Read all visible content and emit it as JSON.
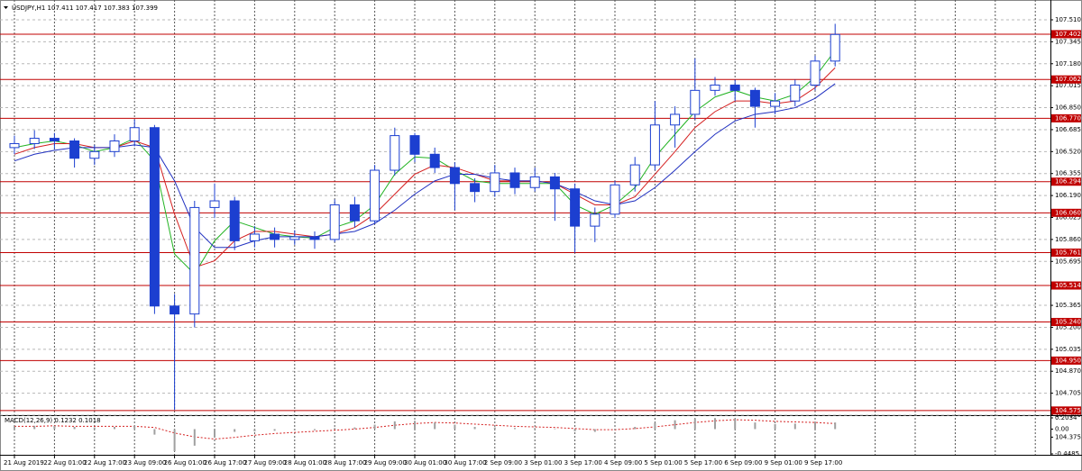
{
  "chart_data": {
    "type": "candlestick",
    "title": "USDJPY,H1  107.411 107.417 107.383 107.399",
    "categories": [
      "21 Aug 2019",
      null,
      "22 Aug 01:00",
      null,
      "22 Aug 17:00",
      null,
      "23 Aug 09:00",
      null,
      "26 Aug 01:00",
      null,
      "26 Aug 17:00",
      null,
      "27 Aug 09:00",
      null,
      "28 Aug 01:00",
      null,
      "28 Aug 17:00",
      null,
      "29 Aug 09:00",
      null,
      "30 Aug 01:00",
      null,
      "30 Aug 17:00",
      null,
      "2 Sep 09:00",
      null,
      "3 Sep 01:00",
      null,
      "3 Sep 17:00",
      null,
      "4 Sep 09:00",
      null,
      "5 Sep 01:00",
      null,
      "5 Sep 17:00",
      null,
      "6 Sep 09:00",
      null,
      "9 Sep 01:00",
      null,
      "9 Sep 17:00",
      null
    ],
    "open": [
      106.55,
      106.58,
      106.62,
      106.6,
      106.47,
      106.52,
      106.6,
      106.7,
      105.36,
      105.3,
      106.1,
      106.15,
      105.85,
      105.9,
      105.86,
      105.88,
      105.86,
      106.12,
      106.0,
      106.38,
      106.64,
      106.5,
      106.4,
      106.28,
      106.22,
      106.36,
      106.25,
      106.33,
      106.24,
      105.96,
      106.05,
      106.27,
      106.42,
      106.72,
      106.8,
      106.98,
      107.02,
      106.98,
      106.86,
      106.9,
      107.02,
      107.2
    ],
    "high": [
      106.64,
      106.68,
      106.66,
      106.62,
      106.57,
      106.65,
      106.76,
      106.72,
      105.45,
      106.15,
      106.28,
      106.18,
      105.96,
      105.95,
      105.93,
      105.92,
      106.16,
      106.18,
      106.42,
      106.7,
      106.66,
      106.55,
      106.44,
      106.32,
      106.42,
      106.4,
      106.4,
      106.36,
      106.28,
      106.1,
      106.3,
      106.48,
      106.9,
      106.86,
      107.22,
      107.08,
      107.06,
      107.0,
      106.96,
      107.06,
      107.24,
      107.48
    ],
    "low": [
      106.5,
      106.54,
      106.54,
      106.4,
      106.42,
      106.48,
      106.56,
      105.3,
      104.58,
      105.2,
      106.02,
      105.78,
      105.8,
      105.8,
      105.82,
      105.79,
      105.84,
      105.95,
      105.98,
      106.34,
      106.44,
      106.36,
      106.08,
      106.14,
      106.18,
      106.2,
      106.22,
      106.0,
      105.76,
      105.84,
      106.02,
      106.22,
      106.38,
      106.55,
      106.76,
      106.94,
      106.9,
      106.7,
      106.8,
      106.86,
      106.98,
      107.16
    ],
    "close": [
      106.58,
      106.62,
      106.6,
      106.47,
      106.52,
      106.6,
      106.7,
      105.36,
      105.3,
      106.1,
      106.15,
      105.85,
      105.9,
      105.86,
      105.88,
      105.86,
      106.12,
      106.0,
      106.38,
      106.64,
      106.5,
      106.4,
      106.28,
      106.22,
      106.36,
      106.25,
      106.33,
      106.24,
      105.96,
      106.05,
      106.27,
      106.42,
      106.72,
      106.8,
      106.98,
      107.02,
      106.98,
      106.86,
      106.9,
      107.02,
      107.2,
      107.4
    ],
    "candle_color": "#1c3fd0",
    "series": [
      {
        "color": "#22b322",
        "values": [
          106.55,
          106.58,
          106.6,
          106.57,
          106.52,
          106.55,
          106.62,
          106.45,
          105.75,
          105.6,
          105.85,
          106.0,
          105.95,
          105.9,
          105.88,
          105.87,
          105.95,
          106.0,
          106.12,
          106.35,
          106.48,
          106.47,
          106.38,
          106.3,
          106.28,
          106.28,
          106.28,
          106.28,
          106.12,
          106.05,
          106.12,
          106.25,
          106.48,
          106.65,
          106.82,
          106.93,
          106.98,
          106.93,
          106.9,
          106.95,
          107.08,
          107.28
        ]
      },
      {
        "color": "#d42020",
        "values": [
          106.5,
          106.55,
          106.58,
          106.58,
          106.55,
          106.55,
          106.6,
          106.55,
          106.05,
          105.65,
          105.7,
          105.85,
          105.92,
          105.92,
          105.9,
          105.88,
          105.9,
          105.95,
          106.05,
          106.2,
          106.35,
          106.42,
          106.4,
          106.35,
          106.3,
          106.3,
          106.3,
          106.28,
          106.2,
          106.12,
          106.12,
          106.18,
          106.35,
          106.52,
          106.7,
          106.82,
          106.9,
          106.9,
          106.88,
          106.9,
          107.0,
          107.15
        ]
      },
      {
        "color": "#2030c0",
        "values": [
          106.45,
          106.5,
          106.53,
          106.55,
          106.55,
          106.55,
          106.57,
          106.55,
          106.3,
          105.95,
          105.8,
          105.8,
          105.85,
          105.88,
          105.88,
          105.88,
          105.9,
          105.92,
          105.98,
          106.08,
          106.2,
          106.3,
          106.35,
          106.35,
          106.32,
          106.3,
          106.3,
          106.28,
          106.22,
          106.15,
          106.12,
          106.15,
          106.25,
          106.38,
          106.52,
          106.65,
          106.75,
          106.8,
          106.82,
          106.85,
          106.92,
          107.03
        ]
      }
    ],
    "ylim": [
      104.54,
      107.625
    ],
    "yticks": [
      {
        "value": 107.51,
        "label": "107.510"
      },
      107.345,
      {
        "value": 107.18,
        "label": "107.180"
      },
      107.015,
      {
        "value": 106.85,
        "label": "106.850"
      },
      106.685,
      {
        "value": 106.52,
        "label": "106.520"
      },
      106.355,
      {
        "value": 106.19,
        "label": "106.190"
      },
      106.025,
      {
        "value": 105.86,
        "label": "105.860"
      },
      105.695,
      105.365,
      {
        "value": 105.2,
        "label": "105.200"
      },
      105.035,
      {
        "value": 104.87,
        "label": "104.870"
      },
      104.705,
      {
        "value": 104.54,
        "label": "104.540"
      },
      104.375
    ],
    "levels": [
      107.402,
      107.062,
      {
        "value": 106.77,
        "label": "106.770"
      },
      106.294,
      {
        "value": 106.06,
        "label": "106.060"
      },
      105.761,
      105.514,
      {
        "value": 105.24,
        "label": "105.240"
      },
      {
        "value": 104.95,
        "label": "104.950"
      },
      104.575
    ],
    "level_color": "#c00000",
    "grid": true,
    "macd": {
      "title": "MACD(12,26,9) 0.1232 0.1018",
      "histogram": [
        0.05,
        0.06,
        0.06,
        0.04,
        0.03,
        0.04,
        0.06,
        -0.1,
        -0.4,
        -0.3,
        -0.15,
        -0.05,
        -0.04,
        -0.03,
        -0.02,
        -0.02,
        0.02,
        0.03,
        0.08,
        0.14,
        0.15,
        0.12,
        0.08,
        0.04,
        0.03,
        0.02,
        0.02,
        0.01,
        -0.04,
        -0.05,
        -0.01,
        0.04,
        0.11,
        0.16,
        0.19,
        0.2,
        0.18,
        0.12,
        0.09,
        0.1,
        0.12,
        0.12
      ],
      "signal": [
        0.05,
        0.05,
        0.06,
        0.05,
        0.05,
        0.05,
        0.05,
        0.03,
        -0.07,
        -0.14,
        -0.18,
        -0.15,
        -0.11,
        -0.08,
        -0.06,
        -0.04,
        -0.02,
        0.0,
        0.03,
        0.07,
        0.1,
        0.12,
        0.11,
        0.09,
        0.07,
        0.05,
        0.04,
        0.03,
        0.01,
        -0.01,
        -0.01,
        0.01,
        0.04,
        0.08,
        0.12,
        0.15,
        0.17,
        0.16,
        0.14,
        0.13,
        0.12,
        0.1
      ],
      "histogram_color": "#a0a0a0",
      "signal_color": "#d42020",
      "ylim": [
        -0.4485,
        0.2034
      ],
      "yticks": [
        0.2034,
        {
          "value": 0,
          "label": "0.00"
        },
        -0.4485
      ]
    }
  }
}
